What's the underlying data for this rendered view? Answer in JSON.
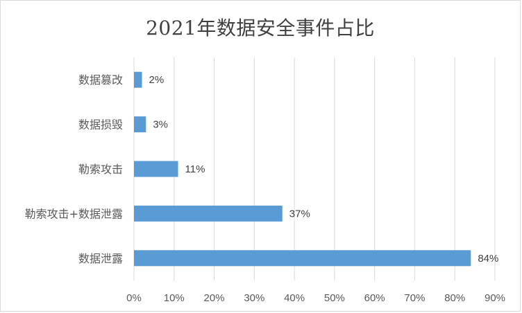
{
  "chart_data": {
    "type": "bar",
    "orientation": "horizontal",
    "title": "2021年数据安全事件占比",
    "categories": [
      "数据篡改",
      "数据损毁",
      "勒索攻击",
      "勒索攻击+数据泄露",
      "数据泄露"
    ],
    "values": [
      2,
      3,
      11,
      37,
      84
    ],
    "data_labels": [
      "2%",
      "3%",
      "11%",
      "37%",
      "84%"
    ],
    "xlim": [
      0,
      90
    ],
    "x_ticks": [
      "0%",
      "10%",
      "20%",
      "30%",
      "40%",
      "50%",
      "60%",
      "70%",
      "80%",
      "90%"
    ],
    "grid": true,
    "legend": "none",
    "bar_color": "#5b9bd5",
    "grid_color": "#d9d9d9"
  }
}
